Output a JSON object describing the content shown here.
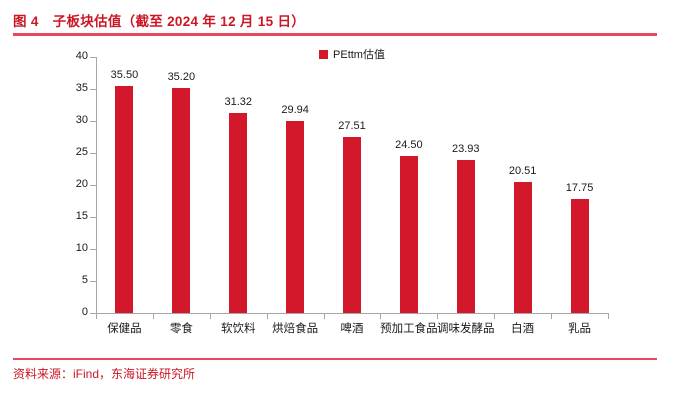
{
  "header": {
    "figure_label": "图 4",
    "title": "子板块估值（截至 2024 年 12 月 15 日）"
  },
  "legend": {
    "label": "PEttm估值"
  },
  "footer": {
    "source": "资料来源：iFind，东海证券研究所"
  },
  "colors": {
    "bar": "#d3182b",
    "accent_text": "#cc1624",
    "rule": "#e9485c",
    "axis": "#a6a6a6",
    "text": "#1a1a1a"
  },
  "chart_data": {
    "type": "bar",
    "title": "子板块估值（截至 2024 年 12 月 15 日）",
    "legend_entries": [
      "PEttm估值"
    ],
    "legend_position": "top-center",
    "categories": [
      "保健品",
      "零食",
      "软饮料",
      "烘焙食品",
      "啤酒",
      "预加工食品",
      "调味发酵品",
      "白酒",
      "乳品"
    ],
    "series": [
      {
        "name": "PEttm估值",
        "values": [
          35.5,
          35.2,
          31.32,
          29.94,
          27.51,
          24.5,
          23.93,
          20.51,
          17.75
        ]
      }
    ],
    "value_label_decimals": 2,
    "xlabel": "",
    "ylabel": "",
    "ylim": [
      0,
      40
    ],
    "ytick_step": 5,
    "grid": false
  }
}
